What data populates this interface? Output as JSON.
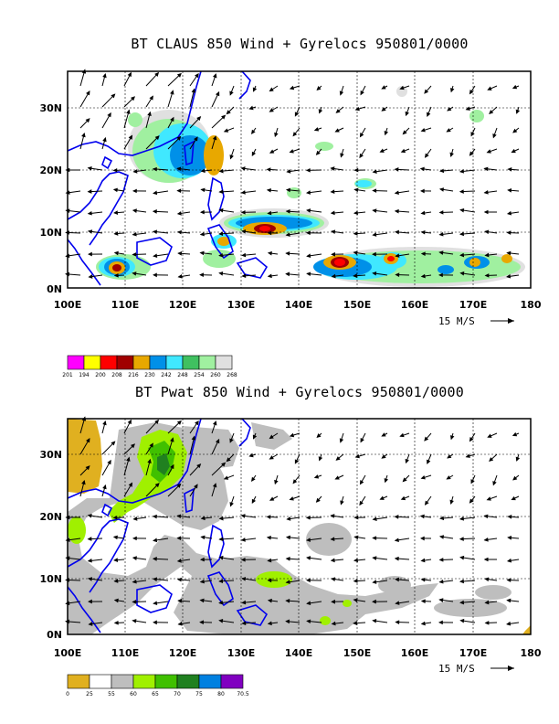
{
  "panels": [
    {
      "title": "BT CLAUS 850 Wind + Gyrelocs 950801/0000",
      "x_ticks": [
        "100E",
        "110E",
        "120E",
        "130E",
        "140E",
        "150E",
        "160E",
        "170E",
        "180"
      ],
      "y_ticks": [
        "0N",
        "10N",
        "20N",
        "30N"
      ],
      "scale_label": "15 M/S",
      "legend": {
        "colors": [
          "#ff00ff",
          "#ffff00",
          "#ff0000",
          "#a00000",
          "#e8a800",
          "#0090e8",
          "#40e8ff",
          "#40c060",
          "#a0f0a0",
          "#e0e0e0"
        ],
        "labels": [
          "201",
          "194",
          "200",
          "208",
          "216",
          "230",
          "242",
          "248",
          "254",
          "260",
          "268"
        ]
      }
    },
    {
      "title": "BT Pwat 850 Wind + Gyrelocs 950801/0000",
      "x_ticks": [
        "100E",
        "110E",
        "120E",
        "130E",
        "140E",
        "150E",
        "160E",
        "170E",
        "180"
      ],
      "y_ticks": [
        "0N",
        "10N",
        "20N",
        "30N"
      ],
      "scale_label": "15 M/S",
      "legend": {
        "colors": [
          "#e0b020",
          "#ffffff",
          "#bebebe",
          "#a0f000",
          "#40c000",
          "#208020",
          "#0080e0",
          "#8000c0"
        ],
        "labels": [
          "0",
          "25",
          "55",
          "60",
          "65",
          "70",
          "75",
          "80",
          "70.5"
        ]
      }
    }
  ]
}
